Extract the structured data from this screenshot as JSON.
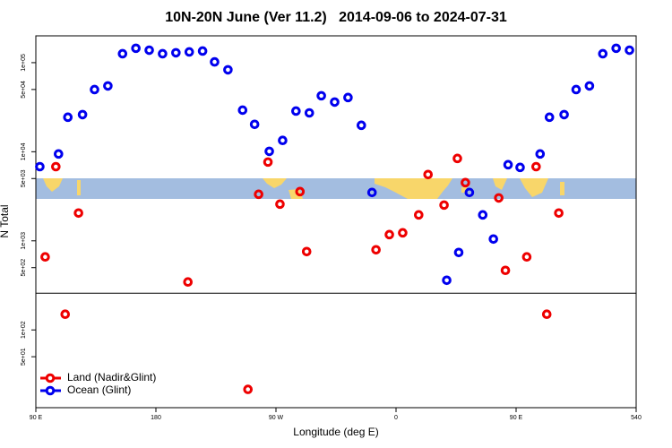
{
  "chart_data": {
    "type": "scatter",
    "title": "10N-20N June (Ver 11.2)   2014-09-06 to 2024-07-31",
    "x_label": "Longitude (deg E)",
    "y_label": "N Total",
    "xlim": [
      90,
      540
    ],
    "xticks": [
      {
        "value": 90,
        "label": "90 E"
      },
      180,
      {
        "value": 270,
        "label": "90 W"
      },
      {
        "value": 360,
        "label": "0"
      },
      {
        "value": 450,
        "label": "90 E"
      },
      540
    ],
    "ylim": [
      13.4,
      200000
    ],
    "log_y": true,
    "yticks": [
      {
        "value": 50,
        "label": "5e+01"
      },
      {
        "value": 100,
        "label": "1e+02"
      },
      {
        "value": 500,
        "label": "5e+02"
      },
      {
        "value": 1000,
        "label": "1e+03"
      },
      {
        "value": 5000,
        "label": "5e+03"
      },
      {
        "value": 10000,
        "label": "1e+04"
      },
      {
        "value": 50000,
        "label": "5e+04"
      },
      {
        "value": 100000,
        "label": "1e+05"
      }
    ],
    "hline": 258,
    "legend": "bottom-left",
    "series": [
      {
        "name": "Land (Nadir&Glint)",
        "color": "#ee0000",
        "x": [
          97,
          105,
          112,
          122,
          204,
          249,
          257,
          264,
          273,
          288,
          293,
          345,
          355,
          365,
          377,
          384,
          396,
          406,
          412,
          437,
          442,
          458,
          465,
          473,
          482
        ],
        "values": [
          660,
          6800,
          150,
          2050,
          345,
          21.5,
          3330,
          7660,
          2580,
          3570,
          757,
          793,
          1175,
          1230,
          1955,
          5550,
          2520,
          8410,
          4500,
          3030,
          466,
          660,
          6800,
          150,
          2050
        ]
      },
      {
        "name": "Ocean (Glint)",
        "color": "#0000ee",
        "x": [
          93,
          107,
          114,
          125,
          134,
          144,
          155,
          165,
          175,
          185,
          195,
          205,
          215,
          224,
          234,
          245,
          254,
          265,
          275,
          285,
          295,
          304,
          314,
          324,
          334,
          342,
          398,
          407,
          415,
          425,
          433,
          444,
          453,
          468,
          475,
          486,
          495,
          505,
          515,
          525,
          535
        ],
        "values": [
          6800,
          9440,
          24400,
          26100,
          49900,
          54800,
          126000,
          145000,
          138000,
          126000,
          129000,
          132000,
          135000,
          102000,
          83100,
          29300,
          20300,
          10100,
          13400,
          28600,
          27300,
          42500,
          36100,
          40600,
          19800,
          3490,
          361,
          740,
          3490,
          1955,
          1047,
          7150,
          6670,
          9440,
          24400,
          26100,
          49900,
          54800,
          126000,
          145000,
          138000
        ]
      }
    ]
  }
}
